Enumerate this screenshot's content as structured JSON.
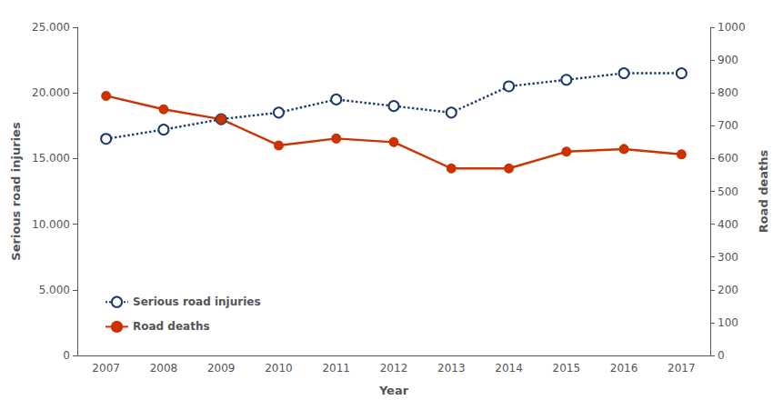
{
  "chart_data": {
    "type": "line",
    "x_label": "Year",
    "y_label": "Serious road injuries",
    "y2_label": "Road deaths",
    "categories": [
      "2007",
      "2008",
      "2009",
      "2010",
      "2011",
      "2012",
      "2013",
      "2014",
      "2015",
      "2016",
      "2017"
    ],
    "series": [
      {
        "name": "Serious road injuries",
        "color": "#1a3a6c",
        "line_style": "dotted",
        "marker": "open_circle",
        "values": [
          16500,
          17200,
          18000,
          18500,
          19500,
          19000,
          18500,
          20500,
          21000,
          21500,
          21500
        ]
      },
      {
        "name": "Road deaths",
        "color": "#cc3300",
        "line_style": "solid",
        "marker": "circle",
        "axis": "y2",
        "values": [
          791,
          750,
          720,
          640,
          661,
          650,
          570,
          570,
          621,
          629,
          613
        ]
      }
    ],
    "ylim": [
      0,
      25000
    ],
    "yticks": [
      0,
      {
        "value": 5000,
        "label": "5.000"
      },
      {
        "value": 10000,
        "label": "10.000"
      },
      {
        "value": 15000,
        "label": "15.000"
      },
      {
        "value": 20000,
        "label": "20.000"
      },
      {
        "value": 25000,
        "label": "25.000"
      }
    ],
    "y2lim": [
      0,
      1000
    ],
    "y2ticks": [
      0,
      100,
      200,
      300,
      400,
      500,
      600,
      700,
      800,
      900,
      1000
    ],
    "grid": false,
    "legend": "lower left"
  }
}
